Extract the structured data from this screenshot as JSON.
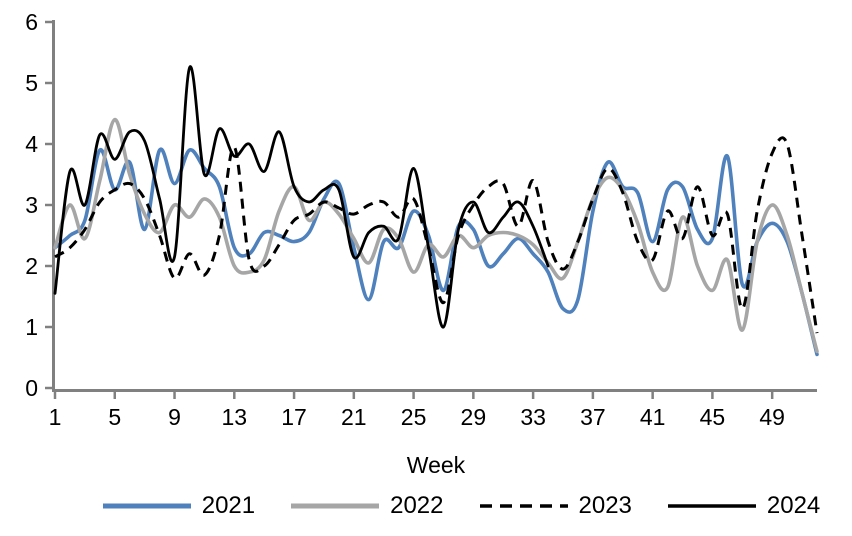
{
  "chart_data": {
    "type": "line",
    "title": "",
    "xlabel": "Week",
    "ylabel": "",
    "xlim": [
      1,
      52
    ],
    "ylim": [
      0,
      6
    ],
    "xticks": [
      1,
      5,
      9,
      13,
      17,
      21,
      25,
      29,
      33,
      37,
      41,
      45,
      49
    ],
    "yticks": [
      0,
      1,
      2,
      3,
      4,
      5,
      6
    ],
    "grid": false,
    "smoothed": true,
    "legend_position": "bottom",
    "axis_color": "#808080",
    "text_color": "#000000",
    "background_color": "#ffffff",
    "x": [
      1,
      2,
      3,
      4,
      5,
      6,
      7,
      8,
      9,
      10,
      11,
      12,
      13,
      14,
      15,
      16,
      17,
      18,
      19,
      20,
      21,
      22,
      23,
      24,
      25,
      26,
      27,
      28,
      29,
      30,
      31,
      32,
      33,
      34,
      35,
      36,
      37,
      38,
      39,
      40,
      41,
      42,
      43,
      44,
      45,
      46,
      47,
      48,
      49,
      50,
      51,
      52
    ],
    "series": [
      {
        "name": "2021",
        "color": "#4F81BD",
        "style": "solid",
        "values": [
          2.3,
          2.5,
          2.75,
          3.9,
          3.25,
          3.7,
          2.6,
          3.9,
          3.35,
          3.9,
          3.6,
          3.3,
          2.3,
          2.2,
          2.55,
          2.5,
          2.4,
          2.55,
          3.1,
          3.35,
          2.3,
          1.45,
          2.4,
          2.3,
          2.9,
          2.5,
          1.6,
          2.65,
          2.6,
          2.0,
          2.2,
          2.45,
          2.2,
          1.9,
          1.3,
          1.45,
          2.9,
          3.7,
          3.3,
          3.2,
          2.4,
          3.25,
          3.3,
          2.6,
          2.45,
          3.8,
          1.7,
          2.4,
          2.7,
          2.4,
          1.55,
          0.55
        ]
      },
      {
        "name": "2022",
        "color": "#A6A6A6",
        "style": "solid",
        "values": [
          2.3,
          3.0,
          2.45,
          3.4,
          4.4,
          3.5,
          2.85,
          2.55,
          3.0,
          2.8,
          3.1,
          2.8,
          2.0,
          1.9,
          2.1,
          2.9,
          3.3,
          2.75,
          3.05,
          2.85,
          2.45,
          2.05,
          2.6,
          2.45,
          1.9,
          2.35,
          2.15,
          2.5,
          2.3,
          2.5,
          2.55,
          2.5,
          2.35,
          2.05,
          1.8,
          2.4,
          3.1,
          3.45,
          3.25,
          2.7,
          1.9,
          1.65,
          2.8,
          2.0,
          1.6,
          2.1,
          0.95,
          2.4,
          3.0,
          2.5,
          1.55,
          0.6
        ]
      },
      {
        "name": "2023",
        "color": "#000000",
        "style": "dashed",
        "values": [
          2.15,
          2.3,
          2.6,
          3.05,
          3.25,
          3.35,
          3.1,
          2.5,
          1.8,
          2.2,
          1.85,
          2.5,
          3.95,
          2.1,
          2.0,
          2.35,
          2.75,
          2.85,
          3.05,
          2.95,
          2.85,
          3.0,
          3.05,
          2.8,
          3.1,
          2.3,
          1.4,
          2.5,
          3.0,
          3.3,
          3.35,
          2.65,
          3.4,
          2.4,
          1.95,
          2.4,
          3.1,
          3.6,
          3.2,
          2.4,
          2.1,
          2.9,
          2.45,
          3.3,
          2.5,
          2.85,
          1.3,
          2.9,
          3.85,
          4.0,
          2.5,
          0.9
        ]
      },
      {
        "name": "2024",
        "color": "#000000",
        "style": "solid",
        "values": [
          1.55,
          3.55,
          3.0,
          4.15,
          3.75,
          4.2,
          4.05,
          3.1,
          2.15,
          5.25,
          3.5,
          4.25,
          3.8,
          4.0,
          3.55,
          4.2,
          3.3,
          3.05,
          3.25,
          3.25,
          2.15,
          2.55,
          2.65,
          2.45,
          3.6,
          2.3,
          1.0,
          2.6,
          3.05,
          2.55,
          2.8,
          3.05,
          2.65,
          2.0
        ]
      }
    ]
  }
}
